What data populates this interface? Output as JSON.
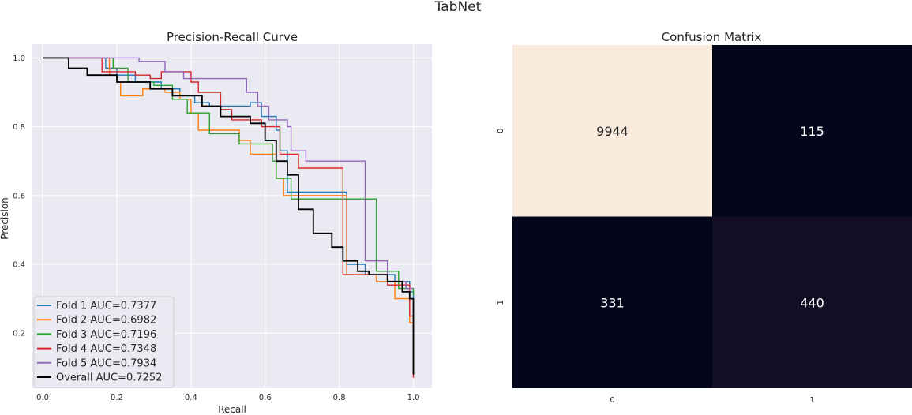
{
  "figure_title": "TabNet",
  "chart_data": [
    {
      "type": "line",
      "title": "Precision-Recall Curve",
      "xlabel": "Recall",
      "ylabel": "Precision",
      "xlim": [
        -0.03,
        1.05
      ],
      "ylim": [
        0.04,
        1.04
      ],
      "xticks": [
        0.0,
        0.2,
        0.4,
        0.6,
        0.8,
        1.0
      ],
      "xtick_labels": [
        "0.0",
        "0.2",
        "0.4",
        "0.6",
        "0.8",
        "1.0"
      ],
      "yticks": [
        0.2,
        0.4,
        0.6,
        0.8,
        1.0
      ],
      "ytick_labels": [
        "0.2",
        "0.4",
        "0.6",
        "0.8",
        "1.0"
      ],
      "grid": true,
      "legend_position": "lower-left",
      "series": [
        {
          "name": "Fold 1 AUC=0.7377",
          "color": "#1f77b4",
          "points": [
            [
              0.0,
              1.0
            ],
            [
              0.17,
              1.0
            ],
            [
              0.17,
              0.97
            ],
            [
              0.2,
              0.97
            ],
            [
              0.2,
              0.95
            ],
            [
              0.25,
              0.95
            ],
            [
              0.25,
              0.93
            ],
            [
              0.32,
              0.93
            ],
            [
              0.32,
              0.91
            ],
            [
              0.37,
              0.91
            ],
            [
              0.37,
              0.89
            ],
            [
              0.41,
              0.89
            ],
            [
              0.41,
              0.87
            ],
            [
              0.45,
              0.87
            ],
            [
              0.45,
              0.86
            ],
            [
              0.56,
              0.86
            ],
            [
              0.56,
              0.87
            ],
            [
              0.59,
              0.87
            ],
            [
              0.59,
              0.83
            ],
            [
              0.63,
              0.83
            ],
            [
              0.63,
              0.79
            ],
            [
              0.64,
              0.79
            ],
            [
              0.64,
              0.73
            ],
            [
              0.66,
              0.73
            ],
            [
              0.66,
              0.61
            ],
            [
              0.82,
              0.61
            ],
            [
              0.82,
              0.4
            ],
            [
              0.87,
              0.4
            ],
            [
              0.87,
              0.37
            ],
            [
              0.95,
              0.37
            ],
            [
              0.95,
              0.35
            ],
            [
              0.99,
              0.35
            ],
            [
              0.99,
              0.32
            ],
            [
              1.0,
              0.32
            ],
            [
              1.0,
              0.3
            ]
          ]
        },
        {
          "name": "Fold 2 AUC=0.6982",
          "color": "#ff7f0e",
          "points": [
            [
              0.0,
              1.0
            ],
            [
              0.18,
              1.0
            ],
            [
              0.18,
              0.95
            ],
            [
              0.2,
              0.95
            ],
            [
              0.2,
              0.93
            ],
            [
              0.21,
              0.93
            ],
            [
              0.21,
              0.89
            ],
            [
              0.27,
              0.89
            ],
            [
              0.27,
              0.91
            ],
            [
              0.33,
              0.91
            ],
            [
              0.33,
              0.9
            ],
            [
              0.37,
              0.9
            ],
            [
              0.37,
              0.88
            ],
            [
              0.4,
              0.88
            ],
            [
              0.4,
              0.84
            ],
            [
              0.42,
              0.84
            ],
            [
              0.42,
              0.79
            ],
            [
              0.53,
              0.79
            ],
            [
              0.53,
              0.76
            ],
            [
              0.56,
              0.76
            ],
            [
              0.56,
              0.72
            ],
            [
              0.63,
              0.72
            ],
            [
              0.63,
              0.65
            ],
            [
              0.65,
              0.65
            ],
            [
              0.65,
              0.6
            ],
            [
              0.82,
              0.6
            ],
            [
              0.82,
              0.37
            ],
            [
              0.9,
              0.37
            ],
            [
              0.9,
              0.35
            ],
            [
              0.95,
              0.35
            ],
            [
              0.95,
              0.3
            ],
            [
              0.99,
              0.3
            ],
            [
              0.99,
              0.23
            ],
            [
              1.0,
              0.23
            ],
            [
              1.0,
              0.08
            ]
          ]
        },
        {
          "name": "Fold 3 AUC=0.7196",
          "color": "#2ca02c",
          "points": [
            [
              0.0,
              1.0
            ],
            [
              0.19,
              1.0
            ],
            [
              0.19,
              0.97
            ],
            [
              0.23,
              0.97
            ],
            [
              0.23,
              0.93
            ],
            [
              0.3,
              0.93
            ],
            [
              0.3,
              0.92
            ],
            [
              0.35,
              0.92
            ],
            [
              0.35,
              0.88
            ],
            [
              0.39,
              0.88
            ],
            [
              0.39,
              0.84
            ],
            [
              0.45,
              0.84
            ],
            [
              0.45,
              0.78
            ],
            [
              0.53,
              0.78
            ],
            [
              0.53,
              0.75
            ],
            [
              0.62,
              0.75
            ],
            [
              0.62,
              0.7
            ],
            [
              0.63,
              0.7
            ],
            [
              0.63,
              0.65
            ],
            [
              0.67,
              0.65
            ],
            [
              0.67,
              0.59
            ],
            [
              0.9,
              0.59
            ],
            [
              0.9,
              0.38
            ],
            [
              0.96,
              0.38
            ],
            [
              0.96,
              0.33
            ],
            [
              1.0,
              0.33
            ],
            [
              1.0,
              0.31
            ]
          ]
        },
        {
          "name": "Fold 4 AUC=0.7348",
          "color": "#d62728",
          "points": [
            [
              0.0,
              1.0
            ],
            [
              0.16,
              1.0
            ],
            [
              0.16,
              0.96
            ],
            [
              0.25,
              0.96
            ],
            [
              0.25,
              0.95
            ],
            [
              0.29,
              0.95
            ],
            [
              0.29,
              0.94
            ],
            [
              0.32,
              0.94
            ],
            [
              0.32,
              0.96
            ],
            [
              0.4,
              0.96
            ],
            [
              0.4,
              0.93
            ],
            [
              0.42,
              0.93
            ],
            [
              0.42,
              0.9
            ],
            [
              0.48,
              0.9
            ],
            [
              0.48,
              0.85
            ],
            [
              0.51,
              0.85
            ],
            [
              0.51,
              0.82
            ],
            [
              0.59,
              0.82
            ],
            [
              0.59,
              0.8
            ],
            [
              0.64,
              0.8
            ],
            [
              0.64,
              0.72
            ],
            [
              0.69,
              0.72
            ],
            [
              0.69,
              0.68
            ],
            [
              0.81,
              0.68
            ],
            [
              0.81,
              0.37
            ],
            [
              0.93,
              0.37
            ],
            [
              0.93,
              0.34
            ],
            [
              0.99,
              0.34
            ],
            [
              0.99,
              0.25
            ],
            [
              1.0,
              0.25
            ],
            [
              1.0,
              0.07
            ]
          ]
        },
        {
          "name": "Fold 5 AUC=0.7934",
          "color": "#9467bd",
          "points": [
            [
              0.0,
              1.0
            ],
            [
              0.26,
              1.0
            ],
            [
              0.26,
              0.99
            ],
            [
              0.33,
              0.99
            ],
            [
              0.33,
              0.96
            ],
            [
              0.38,
              0.96
            ],
            [
              0.38,
              0.94
            ],
            [
              0.55,
              0.94
            ],
            [
              0.55,
              0.9
            ],
            [
              0.58,
              0.9
            ],
            [
              0.58,
              0.86
            ],
            [
              0.61,
              0.86
            ],
            [
              0.61,
              0.82
            ],
            [
              0.66,
              0.82
            ],
            [
              0.66,
              0.8
            ],
            [
              0.67,
              0.8
            ],
            [
              0.67,
              0.73
            ],
            [
              0.71,
              0.73
            ],
            [
              0.71,
              0.7
            ],
            [
              0.87,
              0.7
            ],
            [
              0.87,
              0.41
            ],
            [
              0.93,
              0.41
            ],
            [
              0.93,
              0.35
            ],
            [
              0.98,
              0.35
            ],
            [
              0.98,
              0.33
            ],
            [
              1.0,
              0.33
            ]
          ]
        },
        {
          "name": "Overall AUC=0.7252",
          "color": "#000000",
          "points": [
            [
              0.0,
              1.0
            ],
            [
              0.07,
              1.0
            ],
            [
              0.07,
              0.97
            ],
            [
              0.12,
              0.97
            ],
            [
              0.12,
              0.95
            ],
            [
              0.2,
              0.95
            ],
            [
              0.2,
              0.93
            ],
            [
              0.29,
              0.93
            ],
            [
              0.29,
              0.91
            ],
            [
              0.35,
              0.91
            ],
            [
              0.35,
              0.89
            ],
            [
              0.43,
              0.89
            ],
            [
              0.43,
              0.86
            ],
            [
              0.48,
              0.86
            ],
            [
              0.48,
              0.83
            ],
            [
              0.56,
              0.83
            ],
            [
              0.56,
              0.81
            ],
            [
              0.6,
              0.81
            ],
            [
              0.6,
              0.76
            ],
            [
              0.63,
              0.76
            ],
            [
              0.63,
              0.7
            ],
            [
              0.66,
              0.7
            ],
            [
              0.66,
              0.66
            ],
            [
              0.69,
              0.66
            ],
            [
              0.69,
              0.56
            ],
            [
              0.73,
              0.56
            ],
            [
              0.73,
              0.49
            ],
            [
              0.78,
              0.49
            ],
            [
              0.78,
              0.45
            ],
            [
              0.81,
              0.45
            ],
            [
              0.81,
              0.41
            ],
            [
              0.85,
              0.41
            ],
            [
              0.85,
              0.38
            ],
            [
              0.88,
              0.38
            ],
            [
              0.88,
              0.37
            ],
            [
              0.93,
              0.37
            ],
            [
              0.93,
              0.35
            ],
            [
              0.97,
              0.35
            ],
            [
              0.97,
              0.32
            ],
            [
              0.99,
              0.32
            ],
            [
              0.99,
              0.3
            ],
            [
              1.0,
              0.3
            ],
            [
              1.0,
              0.08
            ]
          ]
        }
      ]
    },
    {
      "type": "heatmap",
      "title": "Confusion Matrix",
      "row_labels": [
        "0",
        "1"
      ],
      "col_labels": [
        "0",
        "1"
      ],
      "values": [
        [
          9944,
          115
        ],
        [
          331,
          440
        ]
      ],
      "value_labels": [
        [
          "9944",
          "115"
        ],
        [
          "331",
          "440"
        ]
      ],
      "cell_colors": [
        [
          "#faebdd",
          "#03051a"
        ],
        [
          "#03051a",
          "#140e25"
        ]
      ],
      "text_colors": [
        [
          "#262626",
          "#ffffff"
        ],
        [
          "#ffffff",
          "#ffffff"
        ]
      ]
    }
  ]
}
